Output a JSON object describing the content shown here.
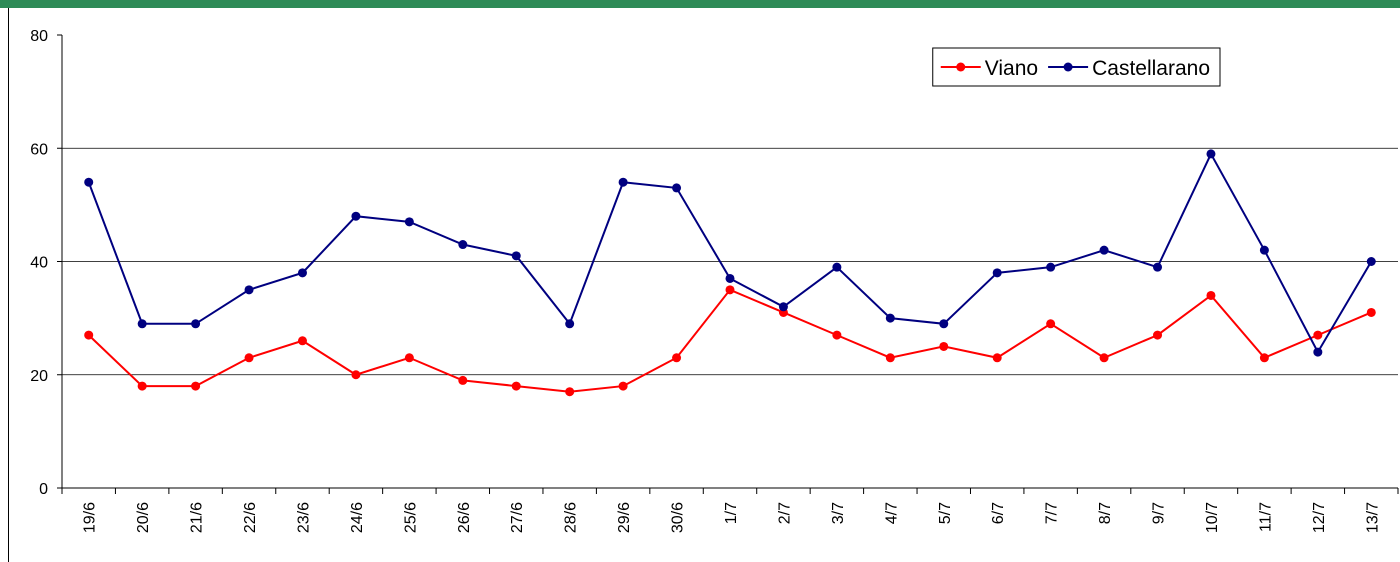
{
  "chart_data": {
    "type": "line",
    "categories": [
      "19/6",
      "20/6",
      "21/6",
      "22/6",
      "23/6",
      "24/6",
      "25/6",
      "26/6",
      "27/6",
      "28/6",
      "29/6",
      "30/6",
      "1/7",
      "2/7",
      "3/7",
      "4/7",
      "5/7",
      "6/7",
      "7/7",
      "8/7",
      "9/7",
      "10/7",
      "11/7",
      "12/7",
      "13/7"
    ],
    "series": [
      {
        "name": "Viano",
        "color": "#ff0000",
        "values": [
          27,
          18,
          18,
          23,
          26,
          20,
          23,
          19,
          18,
          17,
          18,
          23,
          35,
          31,
          27,
          23,
          25,
          23,
          29,
          23,
          27,
          34,
          23,
          27,
          31
        ]
      },
      {
        "name": "Castellarano",
        "color": "#000080",
        "values": [
          54,
          29,
          29,
          35,
          38,
          48,
          47,
          43,
          41,
          29,
          54,
          53,
          37,
          32,
          39,
          30,
          29,
          38,
          39,
          42,
          39,
          59,
          42,
          24,
          40
        ]
      }
    ],
    "ylim": [
      0,
      80
    ],
    "yticks": [
      0,
      20,
      40,
      60,
      80
    ],
    "grid": true,
    "legend": "top-right"
  }
}
